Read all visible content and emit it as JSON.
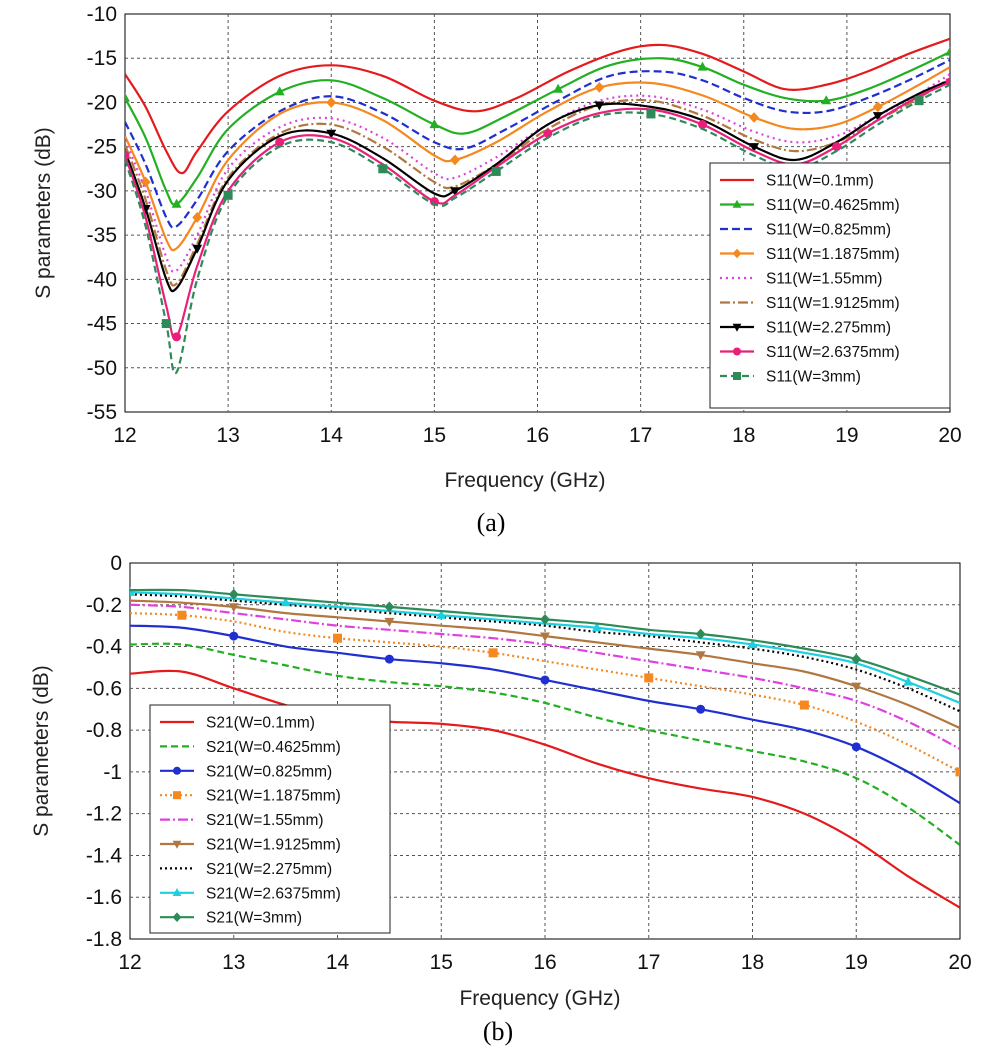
{
  "chart_data": [
    {
      "type": "line",
      "caption": "(a)",
      "xlabel": "Frequency (GHz)",
      "ylabel": "S parameters (dB)",
      "xlim": [
        12,
        20
      ],
      "ylim": [
        -55,
        -10
      ],
      "xticks": [
        12,
        13,
        14,
        15,
        16,
        17,
        18,
        19,
        20
      ],
      "yticks": [
        -10,
        -15,
        -20,
        -25,
        -30,
        -35,
        -40,
        -45,
        -50,
        -55
      ],
      "grid": true,
      "legend_position": "bottom-right",
      "series": [
        {
          "name": "S11(W=0.1mm)",
          "color": "#e41a1c",
          "dash": "",
          "marker": "none",
          "x": [
            12,
            12.2,
            12.4,
            12.55,
            12.7,
            13,
            13.5,
            14,
            14.5,
            15,
            15.4,
            15.8,
            16.3,
            16.8,
            17.2,
            17.6,
            18,
            18.4,
            18.8,
            19.2,
            19.6,
            20
          ],
          "y": [
            -16.8,
            -20.5,
            -25.5,
            -28,
            -25.5,
            -21,
            -17,
            -15.8,
            -17,
            -19.8,
            -21,
            -19.5,
            -16.5,
            -14.2,
            -13.5,
            -14.5,
            -16.5,
            -18.5,
            -18,
            -16.5,
            -14.5,
            -12.8
          ]
        },
        {
          "name": "S11(W=0.4625mm)",
          "color": "#22b022",
          "dash": "",
          "marker": "triangle",
          "x": [
            12,
            12.2,
            12.4,
            12.5,
            12.7,
            13,
            13.5,
            14,
            14.5,
            15,
            15.3,
            15.7,
            16.2,
            16.7,
            17.2,
            17.6,
            18,
            18.4,
            18.8,
            19.2,
            19.6,
            20
          ],
          "y": [
            -19.5,
            -24,
            -30,
            -31.5,
            -28.5,
            -23,
            -18.8,
            -17.5,
            -19.5,
            -22.5,
            -23.5,
            -21.5,
            -18.5,
            -15.8,
            -15,
            -16,
            -18,
            -19.5,
            -19.8,
            -18.5,
            -16.5,
            -14.3
          ]
        },
        {
          "name": "S11(W=0.825mm)",
          "color": "#1f2fd0",
          "dash": "8,4",
          "marker": "none",
          "x": [
            12,
            12.2,
            12.4,
            12.5,
            12.7,
            13,
            13.5,
            14,
            14.5,
            15,
            15.3,
            15.7,
            16.2,
            16.7,
            17.2,
            17.6,
            18,
            18.4,
            18.8,
            19.2,
            19.6,
            20
          ],
          "y": [
            -22.2,
            -27,
            -33,
            -34,
            -31,
            -25.5,
            -21,
            -19.3,
            -21.2,
            -24.5,
            -25.2,
            -23,
            -19.8,
            -17,
            -16.5,
            -17.5,
            -19.5,
            -21,
            -21,
            -19.5,
            -17.5,
            -15.2
          ]
        },
        {
          "name": "S11(W=1.1875mm)",
          "color": "#f5881f",
          "dash": "",
          "marker": "diamond",
          "x": [
            12,
            12.2,
            12.4,
            12.5,
            12.7,
            13,
            13.5,
            14,
            14.5,
            15,
            15.2,
            15.6,
            16.1,
            16.6,
            17.1,
            17.6,
            18.1,
            18.5,
            18.9,
            19.3,
            19.7,
            20
          ],
          "y": [
            -23.8,
            -29,
            -35.5,
            -36.5,
            -33,
            -26.5,
            -21.3,
            -20,
            -22,
            -26,
            -26.5,
            -24.5,
            -21,
            -18.3,
            -17.8,
            -19.2,
            -21.7,
            -23,
            -22.5,
            -20.5,
            -18,
            -16
          ]
        },
        {
          "name": "S11(W=1.55mm)",
          "color": "#e040e0",
          "dash": "2,4",
          "marker": "none",
          "x": [
            12,
            12.2,
            12.4,
            12.5,
            12.7,
            13,
            13.5,
            14,
            14.5,
            15,
            15.2,
            15.6,
            16.1,
            16.6,
            17.1,
            17.6,
            18.1,
            18.5,
            18.9,
            19.3,
            19.7,
            20
          ],
          "y": [
            -24.3,
            -30,
            -37.5,
            -39,
            -35,
            -27.5,
            -22.8,
            -21.8,
            -24,
            -28,
            -28.5,
            -26.2,
            -22.5,
            -19.8,
            -19.3,
            -20.8,
            -23.3,
            -24.5,
            -23.8,
            -21.5,
            -19,
            -16.8
          ]
        },
        {
          "name": "S11(W=1.9125mm)",
          "color": "#b07840",
          "dash": "10,3,2,3",
          "marker": "none",
          "x": [
            12,
            12.2,
            12.4,
            12.5,
            12.7,
            13,
            13.5,
            14,
            14.5,
            15,
            15.2,
            15.6,
            16.1,
            16.6,
            17.1,
            17.6,
            18.1,
            18.5,
            18.9,
            19.3,
            19.7,
            20
          ],
          "y": [
            -24.8,
            -31,
            -39,
            -40.5,
            -36,
            -28.5,
            -23.5,
            -22.5,
            -25,
            -29,
            -29.5,
            -27,
            -23,
            -20.3,
            -19.8,
            -21.5,
            -24.2,
            -25.5,
            -24.5,
            -22,
            -19.5,
            -17.2
          ]
        },
        {
          "name": "S11(W=2.275mm)",
          "color": "#000000",
          "dash": "",
          "marker": "triangle-down",
          "x": [
            12,
            12.2,
            12.4,
            12.5,
            12.7,
            13,
            13.5,
            14,
            14.5,
            15,
            15.2,
            15.6,
            16.1,
            16.6,
            17.1,
            17.6,
            18.1,
            18.5,
            18.9,
            19.3,
            19.7,
            20
          ],
          "y": [
            -25.5,
            -32,
            -40,
            -41,
            -36.5,
            -28.8,
            -23.8,
            -23.5,
            -26.3,
            -30.3,
            -30,
            -27,
            -22.5,
            -20.3,
            -20.5,
            -22,
            -25,
            -26.5,
            -24.5,
            -21.5,
            -19,
            -17.5
          ]
        },
        {
          "name": "S11(W=2.6375mm)",
          "color": "#e8207a",
          "dash": "",
          "marker": "circle",
          "x": [
            12,
            12.2,
            12.4,
            12.5,
            12.7,
            13,
            13.5,
            14,
            14.5,
            15,
            15.2,
            15.6,
            16.1,
            16.6,
            17.1,
            17.6,
            18.1,
            18.5,
            18.9,
            19.3,
            19.7,
            20
          ],
          "y": [
            -26,
            -33,
            -43,
            -46.5,
            -38.5,
            -30,
            -24.5,
            -24,
            -27,
            -31.2,
            -30.5,
            -27.3,
            -23.5,
            -21.2,
            -20.8,
            -22.5,
            -25.5,
            -27,
            -25,
            -22,
            -19.3,
            -17.7
          ]
        },
        {
          "name": "S11(W=3mm)",
          "color": "#2e8b57",
          "dash": "7,4",
          "marker": "square",
          "x": [
            12,
            12.2,
            12.4,
            12.5,
            12.7,
            13,
            13.5,
            14,
            14.5,
            15,
            15.2,
            15.6,
            16.1,
            16.6,
            17.1,
            17.6,
            18.1,
            18.5,
            18.9,
            19.3,
            19.7,
            20
          ],
          "y": [
            -26.5,
            -34,
            -45,
            -50.5,
            -40,
            -30.5,
            -25,
            -24.5,
            -27.5,
            -31.5,
            -30.8,
            -27.8,
            -24,
            -21.5,
            -21.3,
            -23,
            -26,
            -27.5,
            -25.5,
            -22.5,
            -19.8,
            -18
          ]
        }
      ]
    },
    {
      "type": "line",
      "caption": "(b)",
      "xlabel": "Frequency (GHz)",
      "ylabel": "S parameters (dB)",
      "xlim": [
        12,
        20
      ],
      "ylim": [
        -1.8,
        0
      ],
      "xticks": [
        12,
        13,
        14,
        15,
        16,
        17,
        18,
        19,
        20
      ],
      "yticks": [
        0,
        -0.2,
        -0.4,
        -0.6,
        -0.8,
        -1,
        -1.2,
        -1.4,
        -1.6,
        -1.8
      ],
      "grid": true,
      "legend_position": "bottom-left",
      "series": [
        {
          "name": "S21(W=0.1mm)",
          "color": "#e41a1c",
          "dash": "",
          "marker": "none",
          "x": [
            12,
            12.5,
            13,
            13.5,
            14,
            14.5,
            15,
            15.5,
            16,
            16.5,
            17,
            17.5,
            18,
            18.5,
            19,
            19.5,
            20
          ],
          "y": [
            -0.53,
            -0.52,
            -0.6,
            -0.68,
            -0.74,
            -0.76,
            -0.77,
            -0.8,
            -0.87,
            -0.96,
            -1.03,
            -1.08,
            -1.12,
            -1.2,
            -1.33,
            -1.5,
            -1.65
          ]
        },
        {
          "name": "S21(W=0.4625mm)",
          "color": "#22b022",
          "dash": "7,4",
          "marker": "none",
          "x": [
            12,
            12.5,
            13,
            13.5,
            14,
            14.5,
            15,
            15.5,
            16,
            16.5,
            17,
            17.5,
            18,
            18.5,
            19,
            19.5,
            20
          ],
          "y": [
            -0.39,
            -0.39,
            -0.44,
            -0.49,
            -0.54,
            -0.57,
            -0.59,
            -0.62,
            -0.67,
            -0.74,
            -0.8,
            -0.85,
            -0.9,
            -0.95,
            -1.03,
            -1.17,
            -1.35
          ]
        },
        {
          "name": "S21(W=0.825mm)",
          "color": "#1f2fd0",
          "dash": "",
          "marker": "circle",
          "x": [
            12,
            12.5,
            13,
            13.5,
            14,
            14.5,
            15,
            15.5,
            16,
            16.5,
            17,
            17.5,
            18,
            18.5,
            19,
            19.5,
            20
          ],
          "y": [
            -0.3,
            -0.31,
            -0.35,
            -0.4,
            -0.43,
            -0.46,
            -0.48,
            -0.51,
            -0.56,
            -0.61,
            -0.66,
            -0.7,
            -0.75,
            -0.8,
            -0.88,
            -1.0,
            -1.15
          ]
        },
        {
          "name": "S21(W=1.1875mm)",
          "color": "#f5881f",
          "dash": "2,3",
          "marker": "square",
          "x": [
            12,
            12.5,
            13,
            13.5,
            14,
            14.5,
            15,
            15.5,
            16,
            16.5,
            17,
            17.5,
            18,
            18.5,
            19,
            19.5,
            20
          ],
          "y": [
            -0.24,
            -0.25,
            -0.28,
            -0.33,
            -0.36,
            -0.38,
            -0.4,
            -0.43,
            -0.47,
            -0.51,
            -0.55,
            -0.59,
            -0.63,
            -0.68,
            -0.76,
            -0.87,
            -1.0
          ]
        },
        {
          "name": "S21(W=1.55mm)",
          "color": "#e040e0",
          "dash": "10,3,2,3",
          "marker": "none",
          "x": [
            12,
            12.5,
            13,
            13.5,
            14,
            14.5,
            15,
            15.5,
            16,
            16.5,
            17,
            17.5,
            18,
            18.5,
            19,
            19.5,
            20
          ],
          "y": [
            -0.2,
            -0.21,
            -0.24,
            -0.27,
            -0.3,
            -0.32,
            -0.34,
            -0.36,
            -0.39,
            -0.43,
            -0.47,
            -0.51,
            -0.55,
            -0.6,
            -0.66,
            -0.76,
            -0.89
          ]
        },
        {
          "name": "S21(W=1.9125mm)",
          "color": "#b07840",
          "dash": "",
          "marker": "triangle-down",
          "x": [
            12,
            12.5,
            13,
            13.5,
            14,
            14.5,
            15,
            15.5,
            16,
            16.5,
            17,
            17.5,
            18,
            18.5,
            19,
            19.5,
            20
          ],
          "y": [
            -0.18,
            -0.19,
            -0.21,
            -0.24,
            -0.26,
            -0.28,
            -0.3,
            -0.32,
            -0.35,
            -0.38,
            -0.41,
            -0.44,
            -0.48,
            -0.52,
            -0.59,
            -0.68,
            -0.79
          ]
        },
        {
          "name": "S21(W=2.275mm)",
          "color": "#000000",
          "dash": "2,3",
          "marker": "none",
          "x": [
            12,
            12.5,
            13,
            13.5,
            14,
            14.5,
            15,
            15.5,
            16,
            16.5,
            17,
            17.5,
            18,
            18.5,
            19,
            19.5,
            20
          ],
          "y": [
            -0.15,
            -0.16,
            -0.18,
            -0.2,
            -0.22,
            -0.24,
            -0.26,
            -0.28,
            -0.3,
            -0.33,
            -0.35,
            -0.38,
            -0.41,
            -0.45,
            -0.51,
            -0.6,
            -0.71
          ]
        },
        {
          "name": "S21(W=2.6375mm)",
          "color": "#1ecfe0",
          "dash": "",
          "marker": "triangle",
          "x": [
            12,
            12.5,
            13,
            13.5,
            14,
            14.5,
            15,
            15.5,
            16,
            16.5,
            17,
            17.5,
            18,
            18.5,
            19,
            19.5,
            20
          ],
          "y": [
            -0.14,
            -0.15,
            -0.17,
            -0.19,
            -0.21,
            -0.23,
            -0.25,
            -0.27,
            -0.29,
            -0.31,
            -0.34,
            -0.36,
            -0.39,
            -0.43,
            -0.48,
            -0.57,
            -0.67
          ]
        },
        {
          "name": "S21(W=3mm)",
          "color": "#2e8b57",
          "dash": "",
          "marker": "diamond",
          "x": [
            12,
            12.5,
            13,
            13.5,
            14,
            14.5,
            15,
            15.5,
            16,
            16.5,
            17,
            17.5,
            18,
            18.5,
            19,
            19.5,
            20
          ],
          "y": [
            -0.13,
            -0.13,
            -0.15,
            -0.17,
            -0.19,
            -0.21,
            -0.23,
            -0.25,
            -0.27,
            -0.29,
            -0.32,
            -0.34,
            -0.37,
            -0.41,
            -0.46,
            -0.54,
            -0.63
          ]
        }
      ]
    }
  ]
}
